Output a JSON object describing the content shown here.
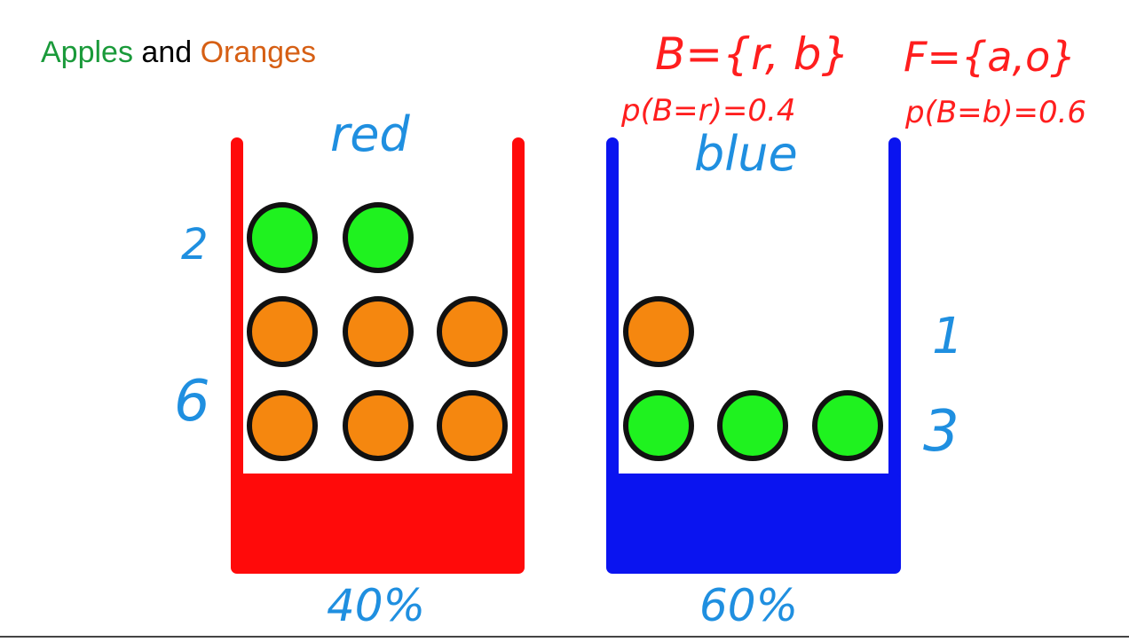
{
  "title": {
    "word1": "Apples",
    "word2": " and ",
    "word3": "Oranges"
  },
  "colors": {
    "apple_text": "#1a9a3a",
    "orange_text": "#d65f14",
    "red_box": "#ff0a0a",
    "blue_box": "#0a14f0",
    "apple_fill": "#1ff21f",
    "orange_fill": "#f5870f",
    "handwriting_red": "#ff1e1e",
    "handwriting_blue": "#1f8fe0"
  },
  "annotations": {
    "set_b": "B={r, b}",
    "set_f": "F={a,o}",
    "prob_red": "p(B=r)=0.4",
    "prob_blue": "p(B=b)=0.6"
  },
  "boxes": {
    "red": {
      "label": "red",
      "percent": "40%",
      "apple_count": "2",
      "orange_count": "6",
      "apples": 2,
      "oranges": 6
    },
    "blue": {
      "label": "blue",
      "percent": "60%",
      "apple_count": "3",
      "orange_count": "1",
      "apples": 3,
      "oranges": 1
    }
  }
}
